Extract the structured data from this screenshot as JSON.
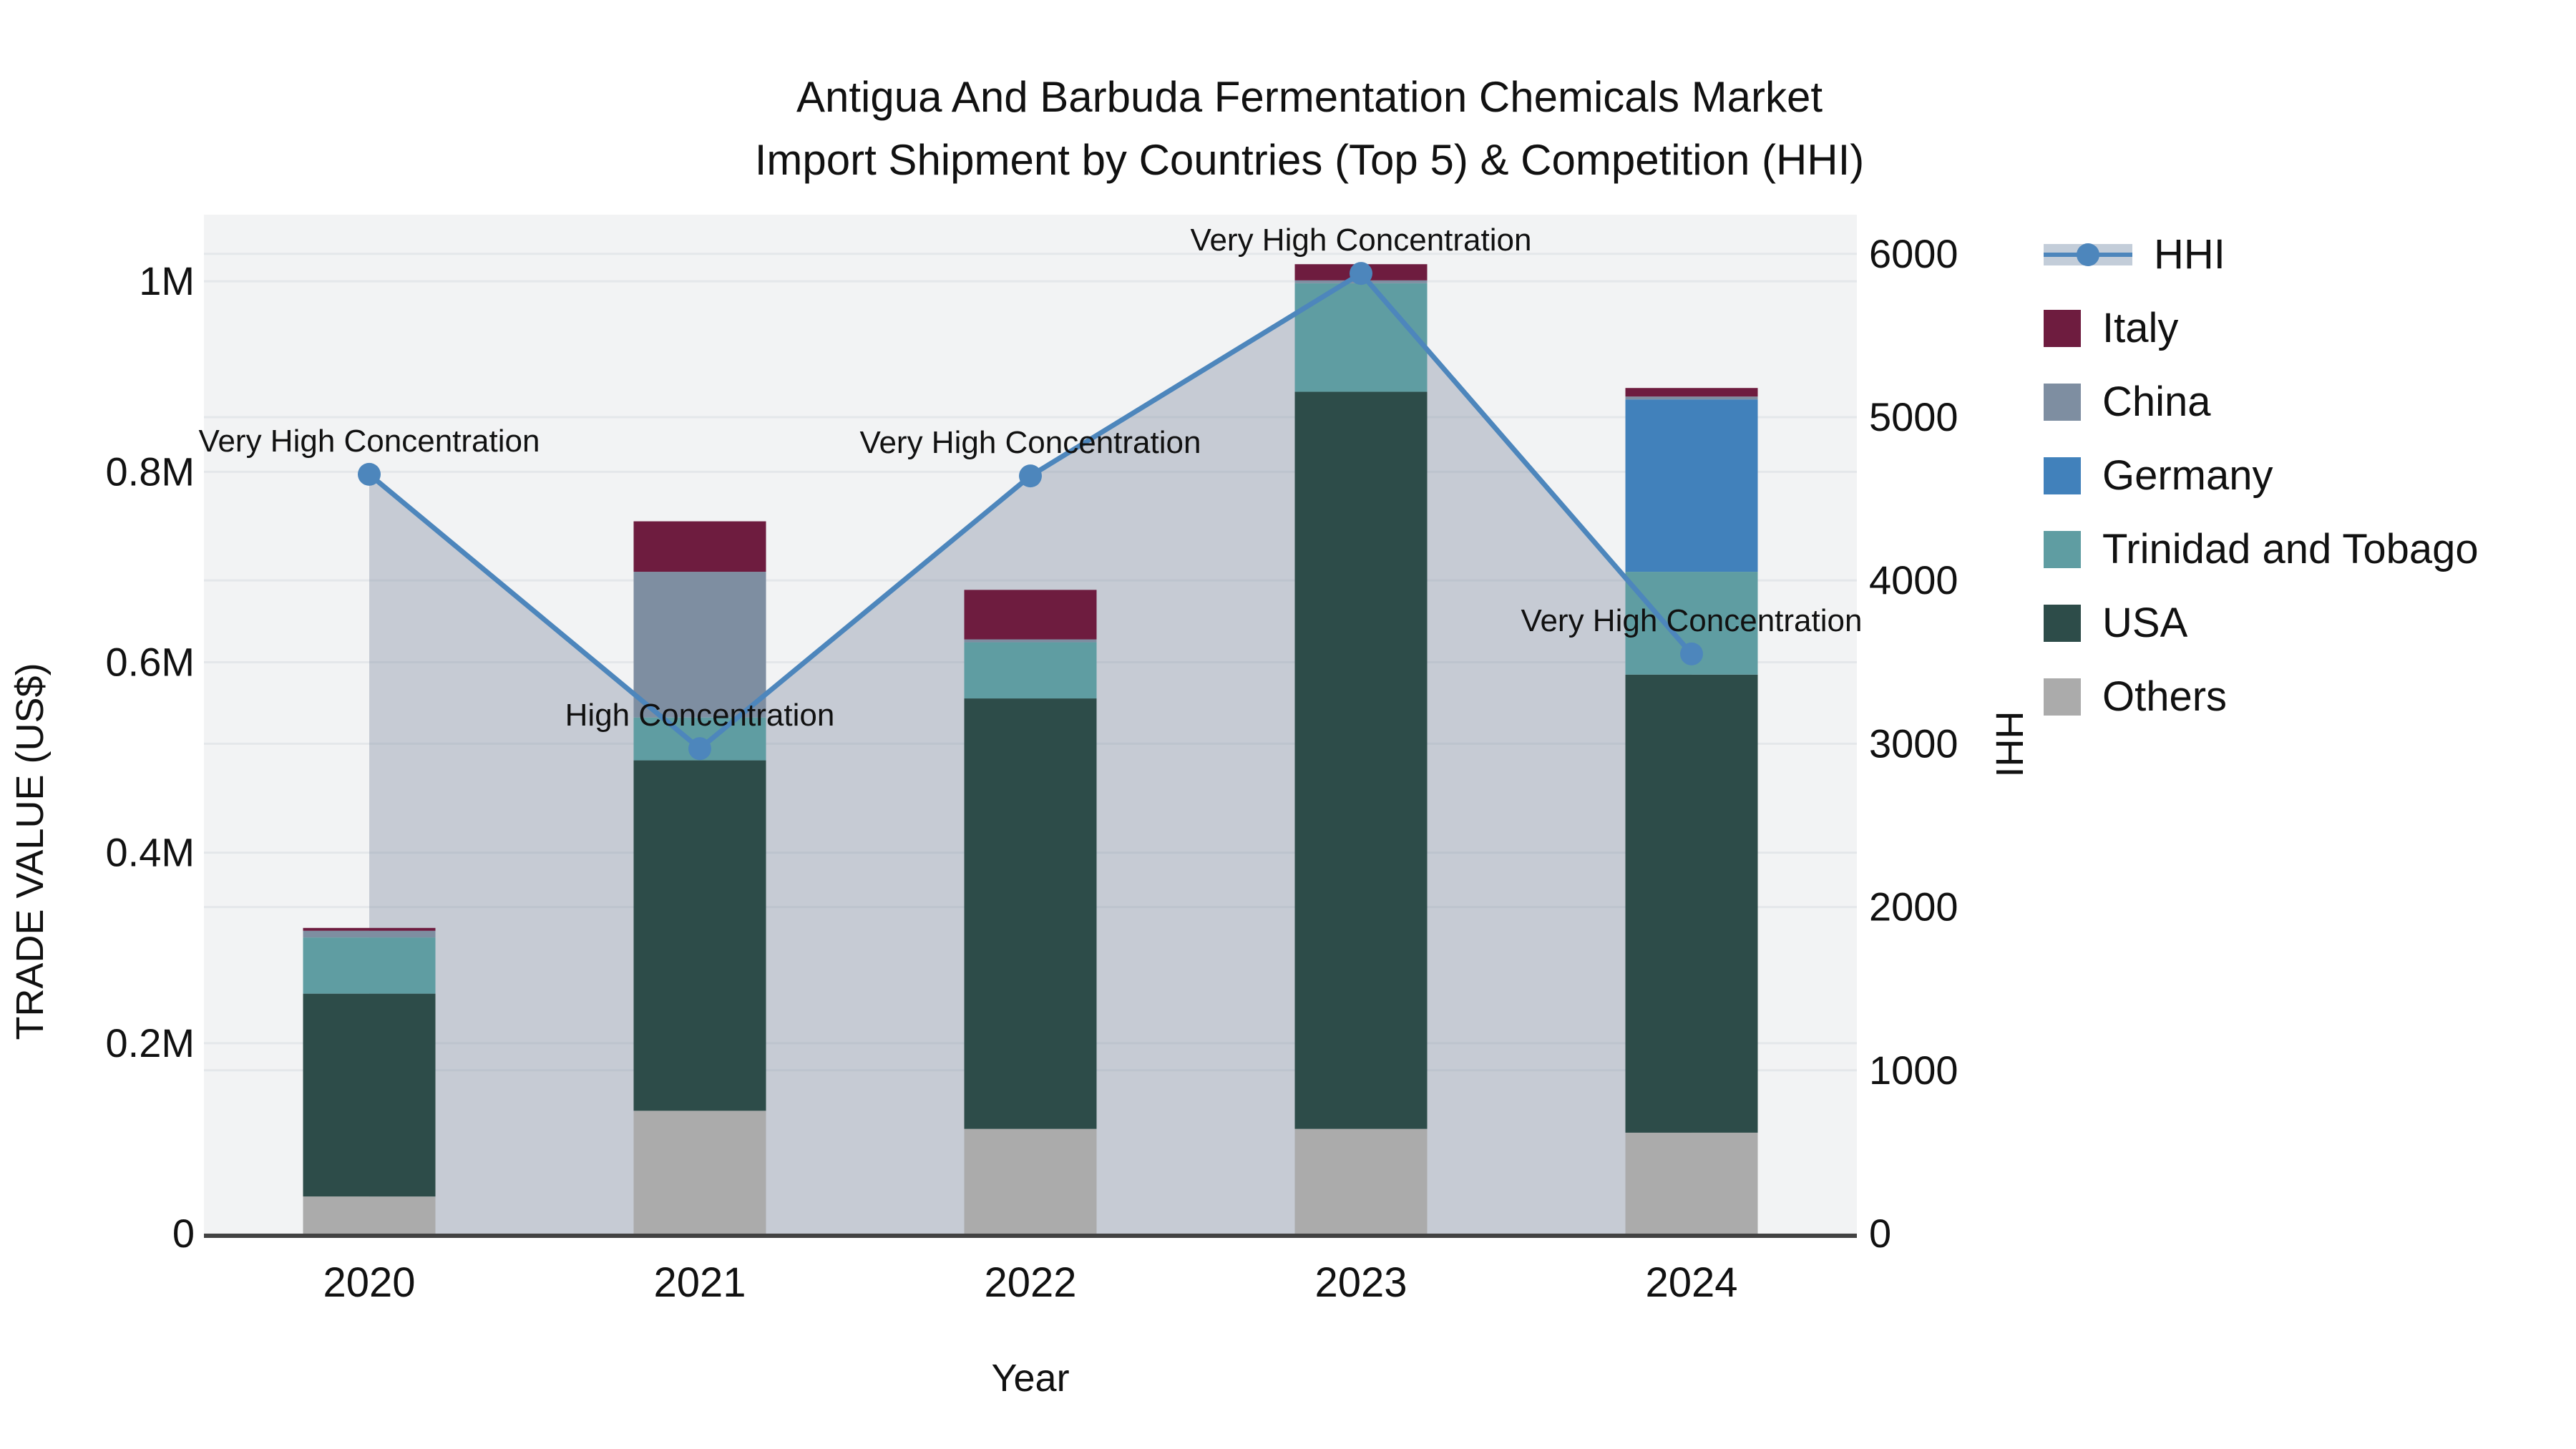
{
  "title": {
    "line1": "Antigua And Barbuda Fermentation Chemicals Market",
    "line2": "Import Shipment by Countries (Top 5) & Competition (HHI)"
  },
  "chart_data": {
    "type": "bar+line",
    "categories": [
      "2020",
      "2021",
      "2022",
      "2023",
      "2024"
    ],
    "xlabel": "Year",
    "ylabel_left": "TRADE VALUE (US$)",
    "ylabel_right": "HHI",
    "left_axis_max": 1070000,
    "right_axis_max": 6240,
    "yticks_left": [
      {
        "v": 0,
        "label": "0"
      },
      {
        "v": 200000,
        "label": "0.2M"
      },
      {
        "v": 400000,
        "label": "0.4M"
      },
      {
        "v": 600000,
        "label": "0.6M"
      },
      {
        "v": 800000,
        "label": "0.8M"
      },
      {
        "v": 1000000,
        "label": "1M"
      }
    ],
    "yticks_right": [
      {
        "v": 0,
        "label": "0"
      },
      {
        "v": 1000,
        "label": "1000"
      },
      {
        "v": 2000,
        "label": "2000"
      },
      {
        "v": 3000,
        "label": "3000"
      },
      {
        "v": 4000,
        "label": "4000"
      },
      {
        "v": 5000,
        "label": "5000"
      },
      {
        "v": 6000,
        "label": "6000"
      }
    ],
    "series": [
      {
        "name": "Others",
        "color": "#ababab",
        "values": [
          39000,
          129000,
          110000,
          110000,
          106000
        ]
      },
      {
        "name": "USA",
        "color": "#2d4c49",
        "values": [
          213000,
          368000,
          452000,
          774000,
          481000
        ]
      },
      {
        "name": "Trinidad and Tobago",
        "color": "#5f9da2",
        "values": [
          59000,
          45000,
          59000,
          114000,
          108000
        ]
      },
      {
        "name": "Germany",
        "color": "#4181bb",
        "values": [
          0,
          0,
          0,
          0,
          181000
        ]
      },
      {
        "name": "China",
        "color": "#7e8ea1",
        "values": [
          7000,
          153000,
          3000,
          3000,
          3000
        ]
      },
      {
        "name": "Italy",
        "color": "#6e1c3f",
        "values": [
          3000,
          53000,
          52000,
          17000,
          9000
        ]
      }
    ],
    "line_series": {
      "name": "HHI",
      "color": "#4d86bc",
      "area_color": "rgba(125,140,160,0.38)",
      "values": [
        4650,
        2970,
        4640,
        5880,
        3550
      ]
    },
    "annotations": [
      {
        "year": "2020",
        "text": "Very High Concentration"
      },
      {
        "year": "2021",
        "text": "High Concentration"
      },
      {
        "year": "2022",
        "text": "Very High Concentration"
      },
      {
        "year": "2023",
        "text": "Very High Concentration"
      },
      {
        "year": "2024",
        "text": "Very High Concentration"
      }
    ],
    "legend": [
      {
        "label": "HHI",
        "type": "line",
        "color": "#4d86bc"
      },
      {
        "label": "Italy",
        "type": "box",
        "color": "#6e1c3f"
      },
      {
        "label": "China",
        "type": "box",
        "color": "#7e8ea1"
      },
      {
        "label": "Germany",
        "type": "box",
        "color": "#4181bb"
      },
      {
        "label": "Trinidad and Tobago",
        "type": "box",
        "color": "#5f9da2"
      },
      {
        "label": "USA",
        "type": "box",
        "color": "#2d4c49"
      },
      {
        "label": "Others",
        "type": "box",
        "color": "#ababab"
      }
    ],
    "style": {
      "plot_bg": "#f2f3f4",
      "grid_color": "#e4e7ea",
      "axis_line_color": "#424242"
    }
  }
}
